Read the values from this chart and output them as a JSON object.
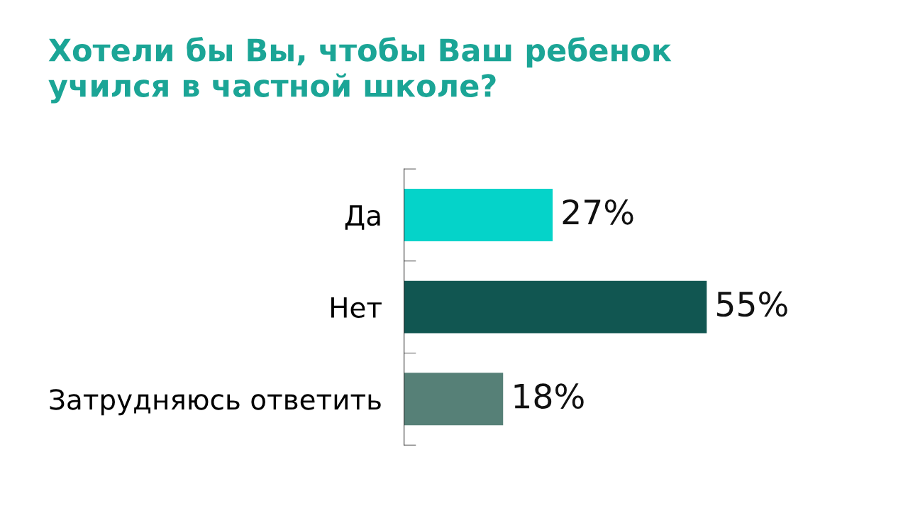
{
  "chart_data": {
    "type": "bar",
    "orientation": "horizontal",
    "title": "Хотели бы Вы, чтобы Ваш ребенок\nучился в частной школе?",
    "categories": [
      "Да",
      "Нет",
      "Затрудняюсь ответить"
    ],
    "values": [
      27,
      55,
      18
    ],
    "colors": [
      "#05d3c9",
      "#115651",
      "#568077"
    ],
    "value_labels": [
      "27%",
      "55%",
      "18%"
    ],
    "grid": false,
    "legend": false,
    "tick_labels": "y"
  }
}
